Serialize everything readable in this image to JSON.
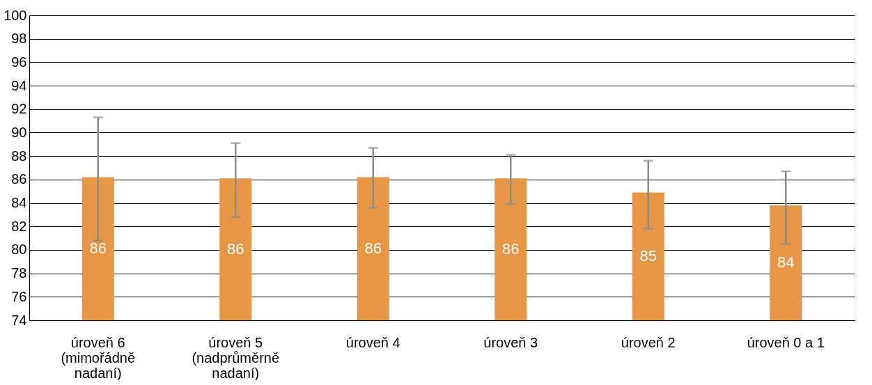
{
  "chart_data": {
    "type": "bar",
    "categories": [
      "úroveň 6\n(mimořádně\nnadaní)",
      "úroveň 5\n(nadprůměrně\nnadaní)",
      "úroveň 4",
      "úroveň 3",
      "úroveň 2",
      "úroveň 0 a 1"
    ],
    "values": [
      86.2,
      86.1,
      86.2,
      86.1,
      84.9,
      83.8
    ],
    "errors": [
      [
        80.8,
        91.3
      ],
      [
        82.8,
        89.1
      ],
      [
        83.6,
        88.7
      ],
      [
        83.9,
        88.1
      ],
      [
        81.8,
        87.6
      ],
      [
        80.5,
        86.7
      ]
    ],
    "value_labels": [
      "86",
      "86",
      "86",
      "86",
      "85",
      "84"
    ],
    "color": "#e69645",
    "ylim": [
      74,
      100
    ],
    "yticks": [
      74,
      76,
      78,
      80,
      82,
      84,
      86,
      88,
      90,
      92,
      94,
      96,
      98,
      100
    ],
    "grid": "y"
  }
}
